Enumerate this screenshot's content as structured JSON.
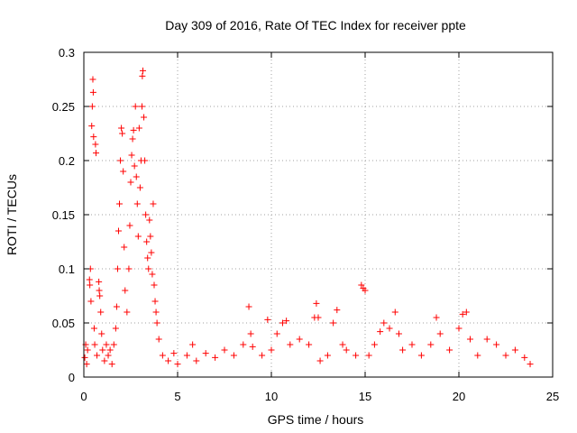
{
  "chart_data": {
    "type": "scatter",
    "title": "Day 309 of 2016, Rate Of TEC Index for receiver ppte",
    "xlabel": "GPS time / hours",
    "ylabel": "ROTI / TECUs",
    "xlim": [
      0,
      25
    ],
    "ylim": [
      0,
      0.3
    ],
    "xticks": [
      "0",
      "5",
      "10",
      "15",
      "20",
      "25"
    ],
    "yticks": [
      "0",
      "0.05",
      "0.1",
      "0.15",
      "0.2",
      "0.25",
      "0.3"
    ],
    "grid": true,
    "marker_color": "#ff0000",
    "marker": "plus",
    "series": [
      {
        "points": [
          [
            0.05,
            0.018
          ],
          [
            0.1,
            0.03
          ],
          [
            0.15,
            0.012
          ],
          [
            0.2,
            0.025
          ],
          [
            0.3,
            0.09
          ],
          [
            0.32,
            0.085
          ],
          [
            0.35,
            0.1
          ],
          [
            0.38,
            0.07
          ],
          [
            0.42,
            0.232
          ],
          [
            0.45,
            0.25
          ],
          [
            0.48,
            0.275
          ],
          [
            0.5,
            0.263
          ],
          [
            0.52,
            0.222
          ],
          [
            0.55,
            0.045
          ],
          [
            0.58,
            0.03
          ],
          [
            0.62,
            0.215
          ],
          [
            0.65,
            0.207
          ],
          [
            0.7,
            0.02
          ],
          [
            0.8,
            0.088
          ],
          [
            0.82,
            0.08
          ],
          [
            0.85,
            0.075
          ],
          [
            0.9,
            0.06
          ],
          [
            0.95,
            0.04
          ],
          [
            1.0,
            0.025
          ],
          [
            1.1,
            0.015
          ],
          [
            1.2,
            0.03
          ],
          [
            1.3,
            0.02
          ],
          [
            1.4,
            0.025
          ],
          [
            1.5,
            0.012
          ],
          [
            1.6,
            0.03
          ],
          [
            1.7,
            0.045
          ],
          [
            1.75,
            0.065
          ],
          [
            1.8,
            0.1
          ],
          [
            1.85,
            0.135
          ],
          [
            1.9,
            0.16
          ],
          [
            1.95,
            0.2
          ],
          [
            2.0,
            0.23
          ],
          [
            2.05,
            0.225
          ],
          [
            2.1,
            0.19
          ],
          [
            2.15,
            0.12
          ],
          [
            2.2,
            0.08
          ],
          [
            2.3,
            0.06
          ],
          [
            2.4,
            0.1
          ],
          [
            2.45,
            0.14
          ],
          [
            2.5,
            0.18
          ],
          [
            2.55,
            0.205
          ],
          [
            2.6,
            0.22
          ],
          [
            2.65,
            0.228
          ],
          [
            2.7,
            0.195
          ],
          [
            2.75,
            0.25
          ],
          [
            2.8,
            0.185
          ],
          [
            2.85,
            0.16
          ],
          [
            2.9,
            0.13
          ],
          [
            2.95,
            0.23
          ],
          [
            3.0,
            0.175
          ],
          [
            3.05,
            0.2
          ],
          [
            3.1,
            0.25
          ],
          [
            3.12,
            0.278
          ],
          [
            3.15,
            0.283
          ],
          [
            3.2,
            0.24
          ],
          [
            3.25,
            0.2
          ],
          [
            3.3,
            0.15
          ],
          [
            3.35,
            0.125
          ],
          [
            3.4,
            0.11
          ],
          [
            3.45,
            0.1
          ],
          [
            3.5,
            0.145
          ],
          [
            3.55,
            0.13
          ],
          [
            3.6,
            0.115
          ],
          [
            3.65,
            0.095
          ],
          [
            3.7,
            0.16
          ],
          [
            3.75,
            0.085
          ],
          [
            3.8,
            0.07
          ],
          [
            3.85,
            0.06
          ],
          [
            3.9,
            0.05
          ],
          [
            4.0,
            0.035
          ],
          [
            4.2,
            0.02
          ],
          [
            4.5,
            0.015
          ],
          [
            4.8,
            0.022
          ],
          [
            5.0,
            0.012
          ],
          [
            5.5,
            0.02
          ],
          [
            5.8,
            0.03
          ],
          [
            6.0,
            0.015
          ],
          [
            6.5,
            0.022
          ],
          [
            7.0,
            0.018
          ],
          [
            7.5,
            0.025
          ],
          [
            8.0,
            0.02
          ],
          [
            8.5,
            0.03
          ],
          [
            8.8,
            0.065
          ],
          [
            8.9,
            0.04
          ],
          [
            9.0,
            0.028
          ],
          [
            9.5,
            0.02
          ],
          [
            9.8,
            0.053
          ],
          [
            10.0,
            0.025
          ],
          [
            10.3,
            0.04
          ],
          [
            10.6,
            0.05
          ],
          [
            10.8,
            0.052
          ],
          [
            11.0,
            0.03
          ],
          [
            11.5,
            0.035
          ],
          [
            12.0,
            0.03
          ],
          [
            12.3,
            0.055
          ],
          [
            12.4,
            0.068
          ],
          [
            12.5,
            0.055
          ],
          [
            12.6,
            0.015
          ],
          [
            13.0,
            0.02
          ],
          [
            13.3,
            0.05
          ],
          [
            13.5,
            0.062
          ],
          [
            13.8,
            0.03
          ],
          [
            14.0,
            0.025
          ],
          [
            14.5,
            0.02
          ],
          [
            14.8,
            0.085
          ],
          [
            14.9,
            0.082
          ],
          [
            15.0,
            0.08
          ],
          [
            15.2,
            0.02
          ],
          [
            15.5,
            0.03
          ],
          [
            15.8,
            0.042
          ],
          [
            16.0,
            0.05
          ],
          [
            16.3,
            0.045
          ],
          [
            16.6,
            0.06
          ],
          [
            16.8,
            0.04
          ],
          [
            17.0,
            0.025
          ],
          [
            17.5,
            0.03
          ],
          [
            18.0,
            0.02
          ],
          [
            18.5,
            0.03
          ],
          [
            18.8,
            0.055
          ],
          [
            19.0,
            0.04
          ],
          [
            19.5,
            0.025
          ],
          [
            20.0,
            0.045
          ],
          [
            20.2,
            0.058
          ],
          [
            20.4,
            0.06
          ],
          [
            20.6,
            0.035
          ],
          [
            21.0,
            0.02
          ],
          [
            21.5,
            0.035
          ],
          [
            22.0,
            0.03
          ],
          [
            22.5,
            0.02
          ],
          [
            23.0,
            0.025
          ],
          [
            23.5,
            0.018
          ],
          [
            23.8,
            0.012
          ]
        ]
      }
    ]
  }
}
